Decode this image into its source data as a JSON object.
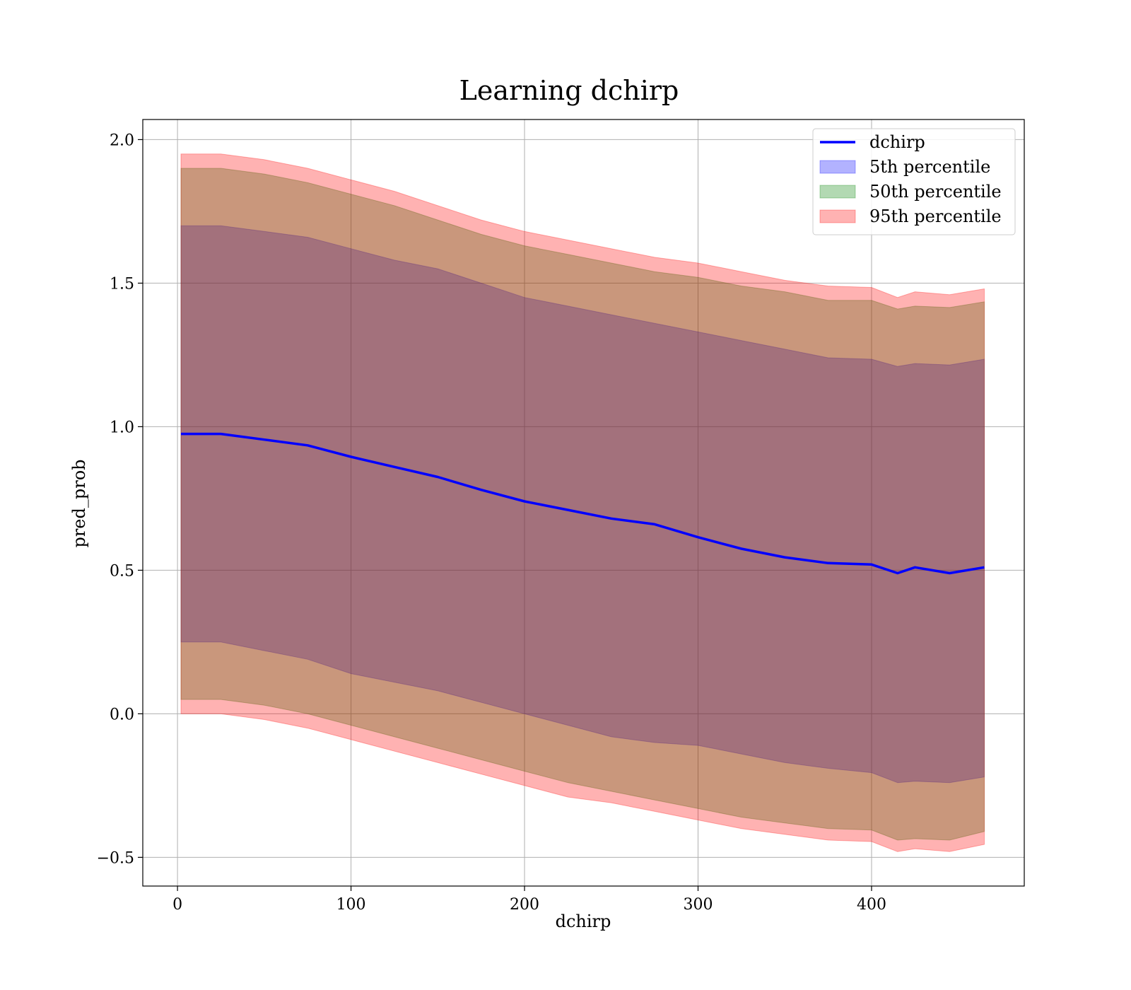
{
  "chart_data": {
    "type": "area",
    "title": "Learning dchirp",
    "xlabel": "dchirp",
    "ylabel": "pred_prob",
    "xlim": [
      -20,
      488
    ],
    "ylim": [
      -0.6,
      2.07
    ],
    "xticks": [
      0,
      100,
      200,
      300,
      400
    ],
    "yticks": [
      -0.5,
      0.0,
      0.5,
      1.0,
      1.5,
      2.0
    ],
    "xtick_labels": [
      "0",
      "100",
      "200",
      "300",
      "400"
    ],
    "ytick_labels": [
      "−0.5",
      "0.0",
      "0.5",
      "1.0",
      "1.5",
      "2.0"
    ],
    "grid": true,
    "legend_position": "top-right",
    "legend": [
      {
        "label": "dchirp",
        "kind": "line",
        "color": "#0000ff"
      },
      {
        "label": "5th percentile",
        "kind": "patch",
        "color": "#0000ff"
      },
      {
        "label": "50th percentile",
        "kind": "patch",
        "color": "#008000"
      },
      {
        "label": "95th percentile",
        "kind": "patch",
        "color": "#ff0000"
      }
    ],
    "x": [
      2,
      25,
      50,
      75,
      100,
      125,
      150,
      175,
      200,
      225,
      250,
      275,
      300,
      325,
      350,
      375,
      400,
      415,
      425,
      445,
      465
    ],
    "series": [
      {
        "name": "dchirp",
        "kind": "line",
        "color": "#0000ff",
        "values": [
          0.975,
          0.975,
          0.955,
          0.935,
          0.895,
          0.86,
          0.825,
          0.78,
          0.74,
          0.71,
          0.68,
          0.66,
          0.615,
          0.575,
          0.545,
          0.525,
          0.52,
          0.49,
          0.51,
          0.49,
          0.51
        ]
      },
      {
        "name": "5th percentile",
        "kind": "band",
        "color": "#0000ff",
        "lower": [
          0.25,
          0.25,
          0.22,
          0.19,
          0.14,
          0.11,
          0.08,
          0.04,
          0.0,
          -0.04,
          -0.08,
          -0.1,
          -0.11,
          -0.14,
          -0.17,
          -0.19,
          -0.205,
          -0.24,
          -0.235,
          -0.24,
          -0.22
        ],
        "upper": [
          1.7,
          1.7,
          1.68,
          1.66,
          1.62,
          1.58,
          1.55,
          1.5,
          1.45,
          1.42,
          1.39,
          1.36,
          1.33,
          1.3,
          1.27,
          1.24,
          1.235,
          1.21,
          1.22,
          1.215,
          1.235
        ]
      },
      {
        "name": "50th percentile",
        "kind": "band",
        "color": "#008000",
        "lower": [
          0.05,
          0.05,
          0.03,
          0.0,
          -0.04,
          -0.08,
          -0.12,
          -0.16,
          -0.2,
          -0.24,
          -0.27,
          -0.3,
          -0.33,
          -0.36,
          -0.38,
          -0.4,
          -0.405,
          -0.44,
          -0.435,
          -0.44,
          -0.41
        ],
        "upper": [
          1.9,
          1.9,
          1.88,
          1.85,
          1.81,
          1.77,
          1.72,
          1.67,
          1.63,
          1.6,
          1.57,
          1.54,
          1.52,
          1.49,
          1.47,
          1.44,
          1.44,
          1.41,
          1.42,
          1.415,
          1.435
        ]
      },
      {
        "name": "95th percentile",
        "kind": "band",
        "color": "#ff0000",
        "lower": [
          0.0,
          0.0,
          -0.02,
          -0.05,
          -0.09,
          -0.13,
          -0.17,
          -0.21,
          -0.25,
          -0.29,
          -0.31,
          -0.34,
          -0.37,
          -0.4,
          -0.42,
          -0.44,
          -0.445,
          -0.48,
          -0.47,
          -0.48,
          -0.455
        ],
        "upper": [
          1.95,
          1.95,
          1.93,
          1.9,
          1.86,
          1.82,
          1.77,
          1.72,
          1.68,
          1.65,
          1.62,
          1.59,
          1.57,
          1.54,
          1.51,
          1.49,
          1.485,
          1.45,
          1.47,
          1.46,
          1.48
        ]
      }
    ]
  }
}
